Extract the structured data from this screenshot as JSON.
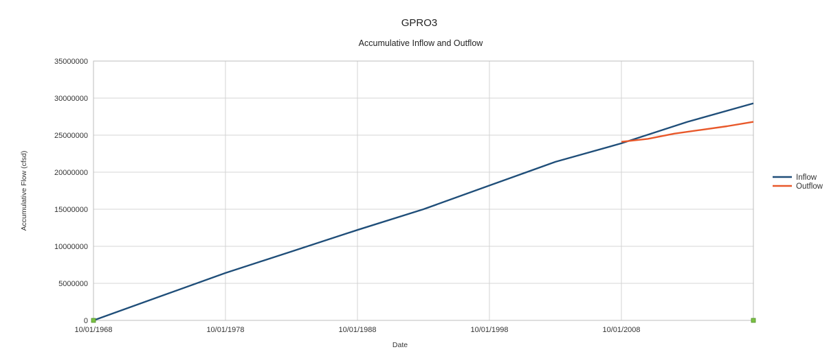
{
  "chart_data": {
    "type": "line",
    "title": "GPRO3",
    "subtitle": "Accumulative Inflow and Outflow",
    "xlabel": "Date",
    "ylabel": "Accumulative Flow (cfsd)",
    "x_tick_labels": [
      "10/01/1968",
      "10/01/1978",
      "10/01/1988",
      "10/01/1998",
      "10/01/2008"
    ],
    "y_tick_labels": [
      "0",
      "5000000",
      "10000000",
      "15000000",
      "20000000",
      "25000000",
      "30000000",
      "35000000"
    ],
    "ylim": [
      0,
      35000000
    ],
    "xlim": [
      "1968-10-01",
      "2018-10-01"
    ],
    "grid": true,
    "legend_position": "right",
    "series": [
      {
        "name": "Inflow",
        "color": "#1f4e79",
        "x": [
          "1968-10-01",
          "1973-10-01",
          "1978-10-01",
          "1983-10-01",
          "1988-10-01",
          "1993-10-01",
          "1998-10-01",
          "2003-10-01",
          "2008-10-01",
          "2013-10-01",
          "2018-10-01"
        ],
        "y": [
          0,
          3200000,
          6400000,
          9300000,
          12200000,
          15000000,
          18200000,
          21400000,
          23900000,
          26800000,
          29300000
        ]
      },
      {
        "name": "Outflow",
        "color": "#e8582a",
        "x": [
          "2008-10-01",
          "2010-10-01",
          "2012-10-01",
          "2014-10-01",
          "2016-10-01",
          "2018-10-01"
        ],
        "y": [
          24100000,
          24500000,
          25200000,
          25700000,
          26200000,
          26800000
        ]
      }
    ]
  }
}
